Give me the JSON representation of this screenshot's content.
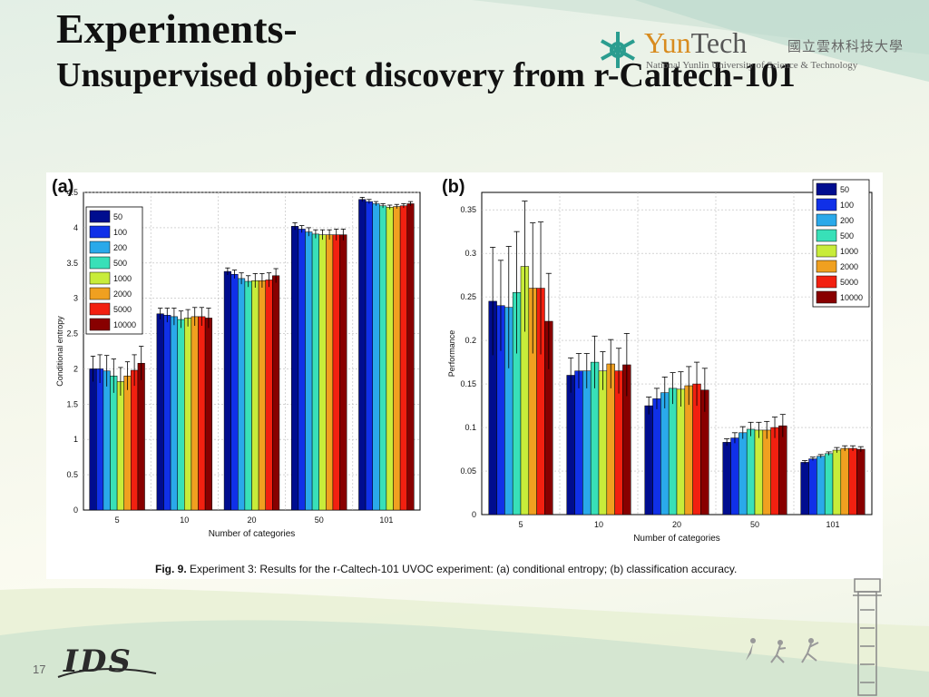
{
  "slide": {
    "title": "Experiments-",
    "subtitle": "Unsupervised object discovery from r-Caltech-101",
    "page_number": "17"
  },
  "logo": {
    "name_part1": "Yun",
    "name_part2": "Tech",
    "chinese_name": "國立雲林科技大學",
    "english_name": "National Yunlin University of Science & Technology",
    "icon": "snowflake-emblem-icon"
  },
  "ids_logo": {
    "text": "IDS"
  },
  "caption": {
    "label": "Fig. 9.",
    "text": " Experiment 3: Results for the r-Caltech-101 UVOC experiment: (a) conditional entropy; (b) classification accuracy."
  },
  "colors": {
    "series": [
      "#000d8f",
      "#1030e8",
      "#2aa9ea",
      "#38e0b8",
      "#c8ec3a",
      "#f0a020",
      "#f22010",
      "#880000"
    ]
  },
  "chart_data": [
    {
      "type": "bar",
      "panel_label": "(a)",
      "xlabel": "Number of categories",
      "ylabel": "Conditional entropy",
      "categories": [
        "5",
        "10",
        "20",
        "50",
        "101"
      ],
      "ylim": [
        0,
        4.5
      ],
      "yticks": [
        "0",
        "0.5",
        "1",
        "1.5",
        "2",
        "2.5",
        "3",
        "3.5",
        "4",
        "4.5"
      ],
      "legend_position": "top-left",
      "grid": true,
      "series": [
        {
          "name": "50",
          "values": [
            2.0,
            2.78,
            3.38,
            4.02,
            4.4
          ],
          "errors": [
            0.18,
            0.08,
            0.05,
            0.05,
            0.03
          ]
        },
        {
          "name": "100",
          "values": [
            2.0,
            2.76,
            3.34,
            3.98,
            4.37
          ],
          "errors": [
            0.2,
            0.1,
            0.06,
            0.05,
            0.03
          ]
        },
        {
          "name": "200",
          "values": [
            1.97,
            2.74,
            3.28,
            3.94,
            4.34
          ],
          "errors": [
            0.22,
            0.12,
            0.08,
            0.06,
            0.03
          ]
        },
        {
          "name": "500",
          "values": [
            1.9,
            2.7,
            3.24,
            3.91,
            4.31
          ],
          "errors": [
            0.24,
            0.12,
            0.08,
            0.06,
            0.03
          ]
        },
        {
          "name": "1000",
          "values": [
            1.82,
            2.72,
            3.25,
            3.9,
            4.29
          ],
          "errors": [
            0.2,
            0.12,
            0.1,
            0.07,
            0.03
          ]
        },
        {
          "name": "2000",
          "values": [
            1.9,
            2.74,
            3.25,
            3.9,
            4.3
          ],
          "errors": [
            0.2,
            0.13,
            0.1,
            0.07,
            0.03
          ]
        },
        {
          "name": "5000",
          "values": [
            1.98,
            2.74,
            3.26,
            3.9,
            4.31
          ],
          "errors": [
            0.22,
            0.13,
            0.1,
            0.08,
            0.03
          ]
        },
        {
          "name": "10000",
          "values": [
            2.08,
            2.72,
            3.32,
            3.9,
            4.34
          ],
          "errors": [
            0.24,
            0.14,
            0.1,
            0.08,
            0.03
          ]
        }
      ]
    },
    {
      "type": "bar",
      "panel_label": "(b)",
      "xlabel": "Number of categories",
      "ylabel": "Performance",
      "categories": [
        "5",
        "10",
        "20",
        "50",
        "101"
      ],
      "ylim": [
        0,
        0.37
      ],
      "yticks": [
        "0",
        "0.05",
        "0.1",
        "0.15",
        "0.2",
        "0.25",
        "0.3",
        "0.35"
      ],
      "legend_position": "top-right",
      "grid": true,
      "series": [
        {
          "name": "50",
          "values": [
            0.245,
            0.16,
            0.125,
            0.083,
            0.06
          ],
          "errors": [
            0.062,
            0.02,
            0.01,
            0.004,
            0.002
          ]
        },
        {
          "name": "100",
          "values": [
            0.24,
            0.165,
            0.133,
            0.088,
            0.064
          ],
          "errors": [
            0.052,
            0.02,
            0.012,
            0.006,
            0.002
          ]
        },
        {
          "name": "200",
          "values": [
            0.238,
            0.165,
            0.14,
            0.094,
            0.067
          ],
          "errors": [
            0.07,
            0.02,
            0.018,
            0.007,
            0.002
          ]
        },
        {
          "name": "500",
          "values": [
            0.255,
            0.175,
            0.145,
            0.098,
            0.07
          ],
          "errors": [
            0.07,
            0.03,
            0.018,
            0.008,
            0.002
          ]
        },
        {
          "name": "1000",
          "values": [
            0.285,
            0.165,
            0.144,
            0.097,
            0.074
          ],
          "errors": [
            0.075,
            0.022,
            0.02,
            0.009,
            0.003
          ]
        },
        {
          "name": "2000",
          "values": [
            0.26,
            0.173,
            0.148,
            0.097,
            0.076
          ],
          "errors": [
            0.075,
            0.028,
            0.022,
            0.01,
            0.003
          ]
        },
        {
          "name": "5000",
          "values": [
            0.26,
            0.165,
            0.15,
            0.1,
            0.076
          ],
          "errors": [
            0.076,
            0.026,
            0.025,
            0.012,
            0.003
          ]
        },
        {
          "name": "10000",
          "values": [
            0.222,
            0.172,
            0.143,
            0.102,
            0.075
          ],
          "errors": [
            0.055,
            0.036,
            0.025,
            0.013,
            0.003
          ]
        }
      ]
    }
  ]
}
